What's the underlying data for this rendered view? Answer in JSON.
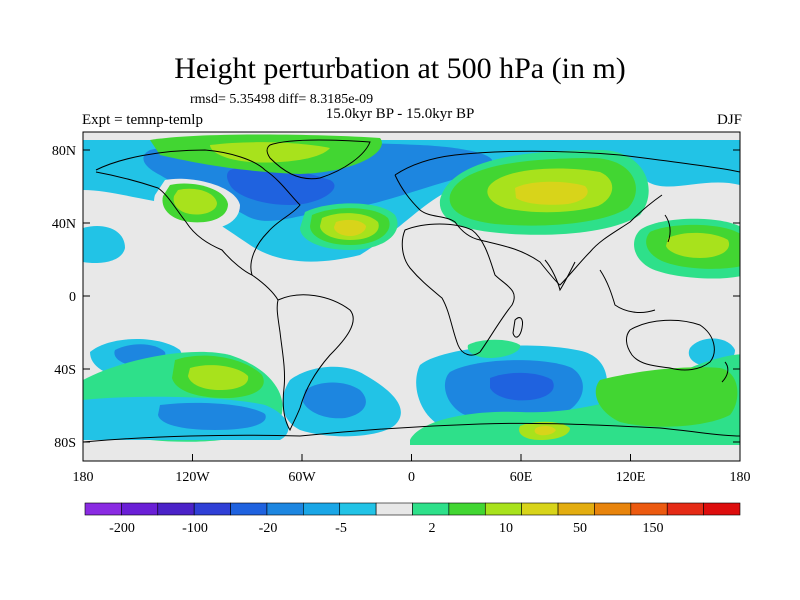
{
  "title": "Height perturbation at 500 hPa (in m)",
  "stats_text": "rmsd= 5.35498 diff= 8.3185e-09",
  "left_string": "Expt = temnp-temlp",
  "center_string": "15.0kyr BP - 15.0kyr BP",
  "right_string": "DJF",
  "lat_labels": [
    "80N",
    "40N",
    "0",
    "40S",
    "80S"
  ],
  "lon_labels": [
    "180",
    "120W",
    "60W",
    "0",
    "60E",
    "120E",
    "180"
  ],
  "colorbar": {
    "labels": [
      "-200",
      "-100",
      "-20",
      "-5",
      "2",
      "10",
      "50",
      "150"
    ],
    "colors": [
      "#8a2be2",
      "#6a1fd6",
      "#4b22c8",
      "#2f3fd6",
      "#1f62df",
      "#1d86e0",
      "#1aa6e6",
      "#22c3e6",
      "#e8e8e8",
      "#2ee08a",
      "#42d632",
      "#a8e21c",
      "#d8d41a",
      "#e3ad10",
      "#e8840c",
      "#ec5a10",
      "#e52b16",
      "#dd0d0d"
    ]
  },
  "colors": {
    "background_field": "#e8e8e8",
    "coast": "#000000"
  }
}
